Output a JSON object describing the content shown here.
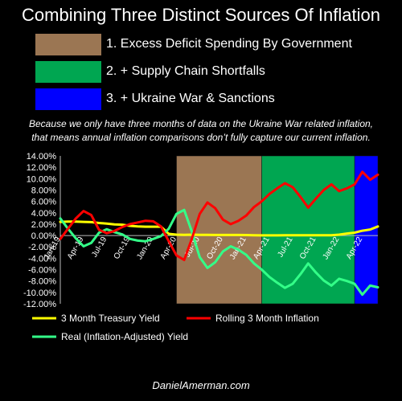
{
  "title": "Combining Three Distinct Sources Of Inflation",
  "legend_boxes": [
    {
      "label": "1. Excess Deficit Spending By Government",
      "color": "#9b7653"
    },
    {
      "label": "2. + Supply Chain Shortfalls",
      "color": "#00a651"
    },
    {
      "label": "3. + Ukraine War & Sanctions",
      "color": "#0000ff"
    }
  ],
  "note": {
    "line1": "Because we only have three months of data on the Ukraine War related inflation,",
    "line2": "that means annual inflation comparisons don’t fully capture our current inflation."
  },
  "footer": "DanielAmerman.com",
  "chart_data": {
    "type": "line",
    "x": [
      "Jan-19",
      "Feb-19",
      "Mar-19",
      "Apr-19",
      "May-19",
      "Jun-19",
      "Jul-19",
      "Aug-19",
      "Sep-19",
      "Oct-19",
      "Nov-19",
      "Dec-19",
      "Jan-20",
      "Feb-20",
      "Mar-20",
      "Apr-20",
      "May-20",
      "Jun-20",
      "Jul-20",
      "Aug-20",
      "Sep-20",
      "Oct-20",
      "Nov-20",
      "Dec-20",
      "Jan-21",
      "Feb-21",
      "Mar-21",
      "Apr-21",
      "May-21",
      "Jun-21",
      "Jul-21",
      "Aug-21",
      "Sep-21",
      "Oct-21",
      "Nov-21",
      "Dec-21",
      "Jan-22",
      "Feb-22",
      "Mar-22",
      "Apr-22",
      "May-22",
      "Jun-22"
    ],
    "tick_labels": [
      "Jan-19",
      "Apr-19",
      "Jul-19",
      "Oct-19",
      "Jan-20",
      "Apr-20",
      "Jul-20",
      "Oct-20",
      "Jan-21",
      "Apr-21",
      "Jul-21",
      "Oct-21",
      "Jan-22",
      "Apr-22"
    ],
    "ylim": [
      -12,
      14
    ],
    "y_ticks": [
      "14.00%",
      "12.00%",
      "10.00%",
      "8.00%",
      "6.00%",
      "4.00%",
      "2.00%",
      "0.00%",
      "-2.00%",
      "-4.00%",
      "-6.00%",
      "-8.00%",
      "-10.00%",
      "-12.00%"
    ],
    "shaded_regions": [
      {
        "start": "Apr-20",
        "end": "Mar-21",
        "color": "#9b7653"
      },
      {
        "start": "Mar-21",
        "end": "Mar-22",
        "color": "#00a651"
      },
      {
        "start": "Mar-22",
        "end": "Jun-22",
        "color": "#0000ff"
      }
    ],
    "series": [
      {
        "name": "3 Month Treasury Yield",
        "color": "#ffff00",
        "values": [
          2.4,
          2.45,
          2.45,
          2.4,
          2.35,
          2.2,
          2.1,
          1.95,
          1.9,
          1.7,
          1.6,
          1.55,
          1.55,
          1.55,
          0.3,
          0.15,
          0.12,
          0.15,
          0.13,
          0.11,
          0.1,
          0.1,
          0.09,
          0.09,
          0.08,
          0.05,
          0.03,
          0.02,
          0.02,
          0.04,
          0.05,
          0.05,
          0.04,
          0.05,
          0.05,
          0.06,
          0.15,
          0.35,
          0.5,
          0.85,
          1.05,
          1.6
        ]
      },
      {
        "name": "Rolling 3 Month Inflation",
        "color": "#ff0000",
        "values": [
          -0.6,
          1.2,
          3.0,
          4.3,
          3.6,
          1.0,
          0.4,
          0.8,
          1.5,
          2.0,
          2.3,
          2.6,
          2.5,
          1.6,
          -1.0,
          -3.5,
          -4.3,
          -0.5,
          3.8,
          5.8,
          4.8,
          2.8,
          2.0,
          2.6,
          3.5,
          5.0,
          6.0,
          7.3,
          8.3,
          9.2,
          8.5,
          6.8,
          4.9,
          6.5,
          8.0,
          9.0,
          7.8,
          8.3,
          9.0,
          11.2,
          9.8,
          10.7
        ]
      },
      {
        "name": "Real (Inflation-Adjusted) Yield",
        "color": "#33ff88",
        "values": [
          3.0,
          1.2,
          -0.5,
          -1.9,
          -1.3,
          0.5,
          1.1,
          0.6,
          0.2,
          -0.6,
          -0.9,
          -1.0,
          -0.6,
          -0.1,
          1.2,
          3.8,
          4.5,
          0.6,
          -3.8,
          -5.7,
          -4.7,
          -2.8,
          -1.9,
          -2.5,
          -3.4,
          -4.9,
          -6.0,
          -7.3,
          -8.3,
          -9.2,
          -8.5,
          -6.8,
          -4.9,
          -6.5,
          -7.9,
          -8.8,
          -7.6,
          -8.0,
          -8.5,
          -10.4,
          -8.8,
          -9.1
        ]
      }
    ],
    "legend_placement": "bottom",
    "grid": false
  }
}
